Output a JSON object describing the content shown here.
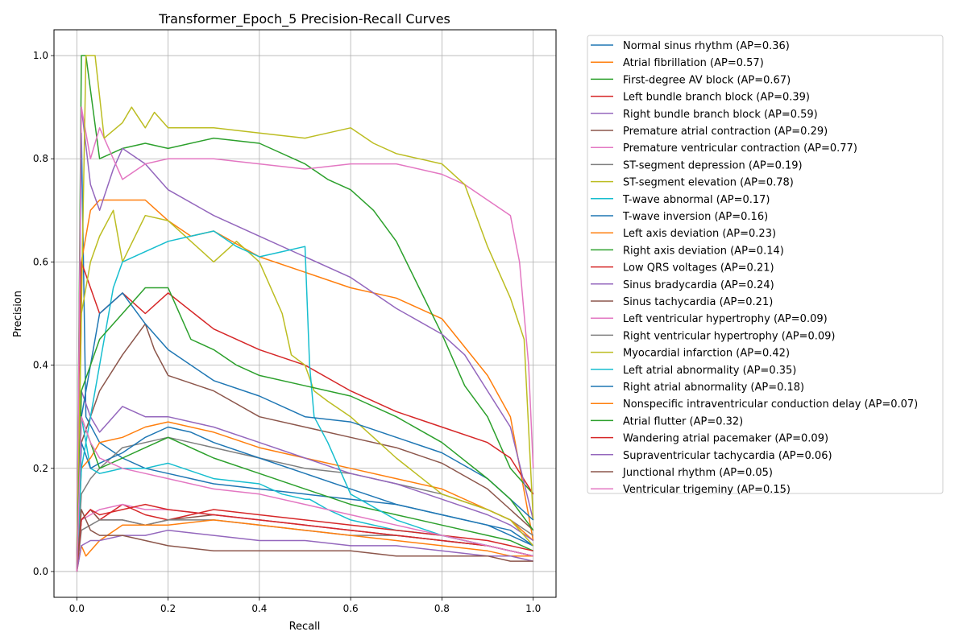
{
  "chart_data": {
    "type": "line",
    "title": "Transformer_Epoch_5 Precision-Recall Curves",
    "xlabel": "Recall",
    "ylabel": "Precision",
    "xlim": [
      -0.05,
      1.05
    ],
    "ylim": [
      -0.05,
      1.05
    ],
    "xticks": [
      0.0,
      0.2,
      0.4,
      0.6,
      0.8,
      1.0
    ],
    "yticks": [
      0.0,
      0.2,
      0.4,
      0.6,
      0.8,
      1.0
    ],
    "xtick_labels": [
      "0.0",
      "0.2",
      "0.4",
      "0.6",
      "0.8",
      "1.0"
    ],
    "ytick_labels": [
      "0.0",
      "0.2",
      "0.4",
      "0.6",
      "0.8",
      "1.0"
    ],
    "grid": true,
    "legend_position": "outside-right",
    "series": [
      {
        "name": "Normal sinus rhythm (AP=0.36)",
        "color": "#1f77b4",
        "x": [
          0.0,
          0.01,
          0.02,
          0.05,
          0.1,
          0.15,
          0.2,
          0.3,
          0.4,
          0.5,
          0.6,
          0.7,
          0.8,
          0.9,
          0.95,
          1.0
        ],
        "y": [
          0.0,
          0.85,
          0.3,
          0.25,
          0.22,
          0.2,
          0.19,
          0.17,
          0.16,
          0.15,
          0.14,
          0.13,
          0.11,
          0.09,
          0.08,
          0.05
        ]
      },
      {
        "name": "Atrial fibrillation (AP=0.57)",
        "color": "#ff7f0e",
        "x": [
          0.0,
          0.01,
          0.03,
          0.05,
          0.1,
          0.15,
          0.2,
          0.25,
          0.3,
          0.4,
          0.5,
          0.6,
          0.7,
          0.8,
          0.9,
          0.95,
          1.0
        ],
        "y": [
          0.0,
          0.6,
          0.7,
          0.72,
          0.72,
          0.72,
          0.68,
          0.65,
          0.66,
          0.61,
          0.58,
          0.55,
          0.53,
          0.49,
          0.38,
          0.3,
          0.06
        ]
      },
      {
        "name": "First-degree AV block (AP=0.67)",
        "color": "#2ca02c",
        "x": [
          0.0,
          0.01,
          0.02,
          0.05,
          0.1,
          0.15,
          0.2,
          0.3,
          0.4,
          0.5,
          0.55,
          0.6,
          0.65,
          0.7,
          0.75,
          0.8,
          0.85,
          0.9,
          0.95,
          1.0
        ],
        "y": [
          0.0,
          1.0,
          1.0,
          0.8,
          0.82,
          0.83,
          0.82,
          0.84,
          0.83,
          0.79,
          0.76,
          0.74,
          0.7,
          0.64,
          0.55,
          0.46,
          0.36,
          0.3,
          0.2,
          0.15
        ]
      },
      {
        "name": "Left bundle branch block (AP=0.39)",
        "color": "#d62728",
        "x": [
          0.0,
          0.01,
          0.03,
          0.05,
          0.1,
          0.15,
          0.2,
          0.3,
          0.4,
          0.5,
          0.6,
          0.7,
          0.8,
          0.9,
          0.95,
          1.0
        ],
        "y": [
          0.0,
          0.6,
          0.55,
          0.5,
          0.54,
          0.5,
          0.54,
          0.47,
          0.43,
          0.4,
          0.35,
          0.31,
          0.28,
          0.25,
          0.22,
          0.15
        ]
      },
      {
        "name": "Right bundle branch block (AP=0.59)",
        "color": "#9467bd",
        "x": [
          0.0,
          0.01,
          0.03,
          0.05,
          0.08,
          0.1,
          0.15,
          0.2,
          0.3,
          0.4,
          0.5,
          0.6,
          0.7,
          0.8,
          0.85,
          0.9,
          0.95,
          1.0
        ],
        "y": [
          0.0,
          0.9,
          0.75,
          0.7,
          0.78,
          0.82,
          0.79,
          0.74,
          0.69,
          0.65,
          0.61,
          0.57,
          0.51,
          0.46,
          0.42,
          0.35,
          0.28,
          0.1
        ]
      },
      {
        "name": "Premature atrial contraction (AP=0.29)",
        "color": "#8c564b",
        "x": [
          0.0,
          0.01,
          0.03,
          0.05,
          0.1,
          0.15,
          0.17,
          0.2,
          0.3,
          0.4,
          0.5,
          0.6,
          0.7,
          0.8,
          0.9,
          0.95,
          1.0
        ],
        "y": [
          0.0,
          0.25,
          0.3,
          0.35,
          0.42,
          0.48,
          0.43,
          0.38,
          0.35,
          0.3,
          0.28,
          0.26,
          0.24,
          0.21,
          0.16,
          0.12,
          0.08
        ]
      },
      {
        "name": "Premature ventricular contraction (AP=0.77)",
        "color": "#e377c2",
        "x": [
          0.0,
          0.01,
          0.03,
          0.05,
          0.08,
          0.1,
          0.15,
          0.2,
          0.3,
          0.4,
          0.5,
          0.6,
          0.7,
          0.8,
          0.85,
          0.9,
          0.95,
          0.97,
          0.99,
          1.0
        ],
        "y": [
          0.0,
          0.9,
          0.8,
          0.86,
          0.8,
          0.76,
          0.79,
          0.8,
          0.8,
          0.79,
          0.78,
          0.79,
          0.79,
          0.77,
          0.75,
          0.72,
          0.69,
          0.6,
          0.4,
          0.2
        ]
      },
      {
        "name": "ST-segment depression (AP=0.19)",
        "color": "#7f7f7f",
        "x": [
          0.0,
          0.01,
          0.03,
          0.05,
          0.1,
          0.15,
          0.2,
          0.25,
          0.3,
          0.4,
          0.5,
          0.6,
          0.7,
          0.8,
          0.9,
          0.95,
          1.0
        ],
        "y": [
          0.0,
          0.15,
          0.18,
          0.2,
          0.24,
          0.25,
          0.26,
          0.25,
          0.24,
          0.22,
          0.2,
          0.19,
          0.17,
          0.15,
          0.12,
          0.1,
          0.07
        ]
      },
      {
        "name": "ST-segment elevation (AP=0.78)",
        "color": "#bcbd22",
        "x": [
          0.0,
          0.02,
          0.04,
          0.06,
          0.1,
          0.12,
          0.15,
          0.17,
          0.2,
          0.3,
          0.4,
          0.5,
          0.55,
          0.6,
          0.65,
          0.7,
          0.75,
          0.8,
          0.85,
          0.9,
          0.95,
          0.98,
          1.0
        ],
        "y": [
          0.0,
          1.0,
          1.0,
          0.84,
          0.87,
          0.9,
          0.86,
          0.89,
          0.86,
          0.86,
          0.85,
          0.84,
          0.85,
          0.86,
          0.83,
          0.81,
          0.8,
          0.79,
          0.75,
          0.63,
          0.53,
          0.45,
          0.1
        ]
      },
      {
        "name": "T-wave abnormal (AP=0.17)",
        "color": "#17becf",
        "x": [
          0.0,
          0.01,
          0.03,
          0.05,
          0.1,
          0.15,
          0.2,
          0.3,
          0.4,
          0.45,
          0.5,
          0.51,
          0.55,
          0.6,
          0.7,
          0.8,
          0.9,
          0.95,
          1.0
        ],
        "y": [
          0.0,
          0.3,
          0.2,
          0.19,
          0.2,
          0.2,
          0.21,
          0.18,
          0.17,
          0.15,
          0.14,
          0.14,
          0.12,
          0.1,
          0.08,
          0.07,
          0.05,
          0.04,
          0.03
        ]
      },
      {
        "name": "T-wave inversion (AP=0.16)",
        "color": "#1f77b4",
        "x": [
          0.0,
          0.01,
          0.03,
          0.05,
          0.1,
          0.15,
          0.2,
          0.25,
          0.3,
          0.4,
          0.5,
          0.6,
          0.7,
          0.8,
          0.9,
          0.95,
          1.0
        ],
        "y": [
          0.0,
          0.25,
          0.2,
          0.21,
          0.23,
          0.26,
          0.28,
          0.27,
          0.25,
          0.22,
          0.19,
          0.16,
          0.13,
          0.11,
          0.09,
          0.07,
          0.05
        ]
      },
      {
        "name": "Left axis deviation (AP=0.23)",
        "color": "#ff7f0e",
        "x": [
          0.0,
          0.01,
          0.03,
          0.05,
          0.1,
          0.15,
          0.2,
          0.3,
          0.4,
          0.5,
          0.6,
          0.7,
          0.8,
          0.9,
          0.95,
          1.0
        ],
        "y": [
          0.0,
          0.2,
          0.22,
          0.25,
          0.26,
          0.28,
          0.29,
          0.27,
          0.24,
          0.22,
          0.2,
          0.18,
          0.16,
          0.12,
          0.1,
          0.06
        ]
      },
      {
        "name": "Right axis deviation (AP=0.14)",
        "color": "#2ca02c",
        "x": [
          0.0,
          0.01,
          0.03,
          0.05,
          0.1,
          0.15,
          0.2,
          0.3,
          0.4,
          0.5,
          0.6,
          0.7,
          0.8,
          0.9,
          0.95,
          1.0
        ],
        "y": [
          0.0,
          0.3,
          0.25,
          0.2,
          0.22,
          0.24,
          0.26,
          0.22,
          0.19,
          0.16,
          0.13,
          0.11,
          0.09,
          0.07,
          0.06,
          0.04
        ]
      },
      {
        "name": "Low QRS voltages (AP=0.21)",
        "color": "#d62728",
        "x": [
          0.0,
          0.01,
          0.03,
          0.05,
          0.1,
          0.15,
          0.2,
          0.3,
          0.4,
          0.5,
          0.6,
          0.7,
          0.8,
          0.9,
          0.95,
          1.0
        ],
        "y": [
          0.0,
          0.1,
          0.12,
          0.1,
          0.13,
          0.11,
          0.1,
          0.12,
          0.11,
          0.1,
          0.09,
          0.08,
          0.07,
          0.06,
          0.05,
          0.04
        ]
      },
      {
        "name": "Sinus bradycardia (AP=0.24)",
        "color": "#9467bd",
        "x": [
          0.0,
          0.01,
          0.03,
          0.05,
          0.1,
          0.15,
          0.2,
          0.3,
          0.4,
          0.5,
          0.6,
          0.7,
          0.8,
          0.9,
          0.95,
          1.0
        ],
        "y": [
          0.0,
          0.35,
          0.3,
          0.27,
          0.32,
          0.3,
          0.3,
          0.28,
          0.25,
          0.22,
          0.19,
          0.17,
          0.14,
          0.11,
          0.09,
          0.06
        ]
      },
      {
        "name": "Sinus tachycardia (AP=0.21)",
        "color": "#8c564b",
        "x": [
          0.0,
          0.01,
          0.03,
          0.05,
          0.1,
          0.15,
          0.2,
          0.3,
          0.4,
          0.5,
          0.6,
          0.7,
          0.8,
          0.9,
          0.95,
          1.0
        ],
        "y": [
          0.0,
          0.1,
          0.12,
          0.1,
          0.1,
          0.09,
          0.1,
          0.11,
          0.1,
          0.09,
          0.08,
          0.07,
          0.06,
          0.05,
          0.04,
          0.03
        ]
      },
      {
        "name": "Left ventricular hypertrophy (AP=0.09)",
        "color": "#e377c2",
        "x": [
          0.0,
          0.01,
          0.03,
          0.05,
          0.1,
          0.15,
          0.2,
          0.3,
          0.4,
          0.5,
          0.6,
          0.7,
          0.8,
          0.9,
          0.95,
          1.0
        ],
        "y": [
          0.0,
          0.1,
          0.11,
          0.12,
          0.13,
          0.12,
          0.12,
          0.11,
          0.1,
          0.09,
          0.08,
          0.07,
          0.06,
          0.05,
          0.04,
          0.03
        ]
      },
      {
        "name": "Right ventricular hypertrophy (AP=0.09)",
        "color": "#7f7f7f",
        "x": [
          0.0,
          0.01,
          0.03,
          0.05,
          0.1,
          0.15,
          0.2,
          0.3,
          0.4,
          0.5,
          0.6,
          0.7,
          0.8,
          0.9,
          0.95,
          1.0
        ],
        "y": [
          0.0,
          0.08,
          0.09,
          0.1,
          0.1,
          0.09,
          0.1,
          0.1,
          0.09,
          0.08,
          0.07,
          0.07,
          0.06,
          0.05,
          0.04,
          0.03
        ]
      },
      {
        "name": "Myocardial infarction (AP=0.42)",
        "color": "#bcbd22",
        "x": [
          0.0,
          0.01,
          0.03,
          0.05,
          0.08,
          0.1,
          0.15,
          0.2,
          0.25,
          0.3,
          0.35,
          0.4,
          0.45,
          0.47,
          0.5,
          0.52,
          0.55,
          0.6,
          0.65,
          0.7,
          0.8,
          0.9,
          0.95,
          1.0
        ],
        "y": [
          0.0,
          0.5,
          0.6,
          0.65,
          0.7,
          0.6,
          0.69,
          0.68,
          0.64,
          0.6,
          0.64,
          0.6,
          0.5,
          0.42,
          0.4,
          0.35,
          0.33,
          0.3,
          0.26,
          0.22,
          0.15,
          0.12,
          0.1,
          0.05
        ]
      },
      {
        "name": "Left atrial abnormality (AP=0.35)",
        "color": "#17becf",
        "x": [
          0.0,
          0.01,
          0.03,
          0.05,
          0.08,
          0.1,
          0.15,
          0.2,
          0.25,
          0.3,
          0.35,
          0.4,
          0.45,
          0.5,
          0.51,
          0.52,
          0.55,
          0.6,
          0.7,
          0.8,
          0.9,
          0.95,
          1.0
        ],
        "y": [
          0.0,
          0.2,
          0.3,
          0.4,
          0.55,
          0.6,
          0.62,
          0.64,
          0.65,
          0.66,
          0.63,
          0.61,
          0.62,
          0.63,
          0.4,
          0.3,
          0.25,
          0.15,
          0.1,
          0.07,
          0.05,
          0.04,
          0.03
        ]
      },
      {
        "name": "Right atrial abnormality (AP=0.18)",
        "color": "#1f77b4",
        "x": [
          0.0,
          0.01,
          0.03,
          0.05,
          0.1,
          0.15,
          0.2,
          0.3,
          0.4,
          0.5,
          0.6,
          0.7,
          0.8,
          0.9,
          0.95,
          1.0
        ],
        "y": [
          0.0,
          0.3,
          0.4,
          0.5,
          0.54,
          0.48,
          0.43,
          0.37,
          0.34,
          0.3,
          0.29,
          0.26,
          0.23,
          0.18,
          0.14,
          0.1
        ]
      },
      {
        "name": "Nonspecific intraventricular conduction delay (AP=0.07)",
        "color": "#ff7f0e",
        "x": [
          0.0,
          0.01,
          0.02,
          0.05,
          0.1,
          0.15,
          0.2,
          0.3,
          0.4,
          0.5,
          0.6,
          0.7,
          0.8,
          0.9,
          0.95,
          1.0
        ],
        "y": [
          0.0,
          0.05,
          0.03,
          0.06,
          0.09,
          0.09,
          0.09,
          0.1,
          0.09,
          0.08,
          0.07,
          0.06,
          0.05,
          0.04,
          0.03,
          0.03
        ]
      },
      {
        "name": "Atrial flutter (AP=0.32)",
        "color": "#2ca02c",
        "x": [
          0.0,
          0.01,
          0.03,
          0.05,
          0.1,
          0.15,
          0.2,
          0.25,
          0.3,
          0.35,
          0.4,
          0.5,
          0.6,
          0.7,
          0.8,
          0.9,
          0.95,
          1.0
        ],
        "y": [
          0.0,
          0.35,
          0.4,
          0.45,
          0.5,
          0.55,
          0.55,
          0.45,
          0.43,
          0.4,
          0.38,
          0.36,
          0.34,
          0.3,
          0.25,
          0.18,
          0.14,
          0.08
        ]
      },
      {
        "name": "Wandering atrial pacemaker (AP=0.09)",
        "color": "#d62728",
        "x": [
          0.0,
          0.01,
          0.03,
          0.05,
          0.1,
          0.15,
          0.2,
          0.3,
          0.4,
          0.5,
          0.6,
          0.7,
          0.8,
          0.9,
          0.95,
          1.0
        ],
        "y": [
          0.0,
          0.1,
          0.12,
          0.11,
          0.12,
          0.13,
          0.12,
          0.11,
          0.1,
          0.09,
          0.08,
          0.07,
          0.06,
          0.05,
          0.04,
          0.03
        ]
      },
      {
        "name": "Supraventricular tachycardia (AP=0.06)",
        "color": "#9467bd",
        "x": [
          0.0,
          0.01,
          0.03,
          0.05,
          0.1,
          0.15,
          0.2,
          0.3,
          0.4,
          0.5,
          0.6,
          0.7,
          0.8,
          0.9,
          0.95,
          1.0
        ],
        "y": [
          0.0,
          0.05,
          0.06,
          0.06,
          0.07,
          0.07,
          0.08,
          0.07,
          0.06,
          0.06,
          0.05,
          0.05,
          0.04,
          0.03,
          0.03,
          0.02
        ]
      },
      {
        "name": "Junctional rhythm (AP=0.05)",
        "color": "#8c564b",
        "x": [
          0.0,
          0.01,
          0.03,
          0.05,
          0.1,
          0.15,
          0.2,
          0.3,
          0.4,
          0.5,
          0.6,
          0.7,
          0.8,
          0.9,
          0.95,
          1.0
        ],
        "y": [
          0.0,
          0.12,
          0.08,
          0.07,
          0.07,
          0.06,
          0.05,
          0.04,
          0.04,
          0.04,
          0.04,
          0.03,
          0.03,
          0.03,
          0.02,
          0.02
        ]
      },
      {
        "name": "Ventricular trigeminy (AP=0.15)",
        "color": "#e377c2",
        "x": [
          0.0,
          0.01,
          0.03,
          0.05,
          0.1,
          0.15,
          0.2,
          0.3,
          0.4,
          0.5,
          0.6,
          0.7,
          0.8,
          0.9,
          0.95,
          1.0
        ],
        "y": [
          0.0,
          0.3,
          0.25,
          0.22,
          0.2,
          0.19,
          0.18,
          0.16,
          0.15,
          0.13,
          0.11,
          0.09,
          0.07,
          0.05,
          0.04,
          0.03
        ]
      }
    ]
  }
}
